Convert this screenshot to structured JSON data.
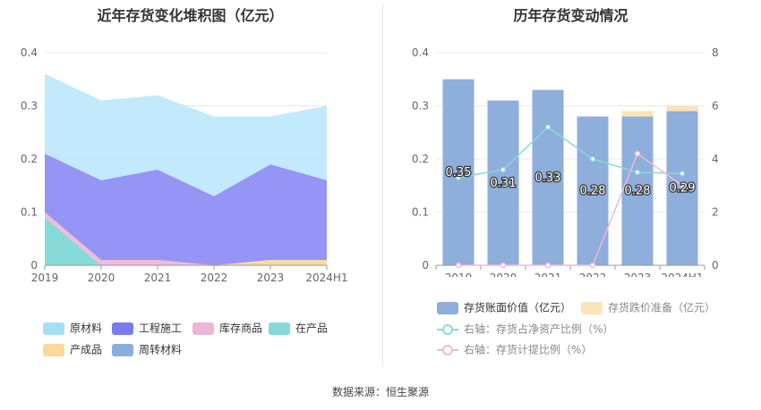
{
  "left": {
    "title": "近年存货变化堆积图（亿元）"
  },
  "right": {
    "title": "历年存货变动情况"
  },
  "source": "数据来源：恒生聚源",
  "chart_data": [
    {
      "type": "area",
      "title": "近年存货变化堆积图（亿元）",
      "categories": [
        "2019",
        "2020",
        "2021",
        "2022",
        "2023",
        "2024H1"
      ],
      "ylim": [
        0,
        0.4
      ],
      "yticks": [
        "0",
        "0.1",
        "0.2",
        "0.3",
        "0.4"
      ],
      "stacked": true,
      "grid": true,
      "legend_position": "bottom",
      "series": [
        {
          "name": "在产品",
          "color": "#7fd8d8",
          "values": [
            0.09,
            0.0,
            0.0,
            0.0,
            0.0,
            0.0
          ]
        },
        {
          "name": "库存商品",
          "color": "#f0b8d8",
          "values": [
            0.01,
            0.01,
            0.01,
            0.0,
            0.0,
            0.0
          ]
        },
        {
          "name": "产成品",
          "color": "#fcd79a",
          "values": [
            0.0,
            0.0,
            0.0,
            0.0,
            0.01,
            0.01
          ]
        },
        {
          "name": "工程施工",
          "color": "#8f8ff5",
          "values": [
            0.11,
            0.15,
            0.17,
            0.13,
            0.18,
            0.15
          ]
        },
        {
          "name": "周转材料",
          "color": "#8aaedc",
          "values": [
            0.0,
            0.0,
            0.0,
            0.0,
            0.0,
            0.0
          ]
        },
        {
          "name": "原材料",
          "color": "#bfe8fc",
          "values": [
            0.15,
            0.15,
            0.14,
            0.15,
            0.09,
            0.14
          ]
        }
      ],
      "legend": [
        {
          "name": "原材料",
          "color": "#a8ddf8"
        },
        {
          "name": "工程施工",
          "color": "#7b7bf0"
        },
        {
          "name": "库存商品",
          "color": "#ebb5d8"
        },
        {
          "name": "在产品",
          "color": "#88d8d8"
        },
        {
          "name": "产成品",
          "color": "#fdd89a"
        },
        {
          "name": "周转材料",
          "color": "#8aaedc"
        }
      ]
    },
    {
      "type": "bar",
      "title": "历年存货变动情况",
      "categories": [
        "2019",
        "2020",
        "2021",
        "2022",
        "2023",
        "2024H1"
      ],
      "ylim": [
        0,
        0.4
      ],
      "yticks": [
        "0",
        "0.1",
        "0.2",
        "0.3",
        "0.4"
      ],
      "y2lim": [
        0,
        8
      ],
      "y2ticks": [
        "0",
        "2",
        "4",
        "6",
        "8"
      ],
      "stacked": true,
      "grid": true,
      "legend_position": "bottom",
      "series": [
        {
          "name": "存货账面价值（亿元）",
          "type": "bar",
          "color": "#8eaedc",
          "values": [
            0.35,
            0.31,
            0.33,
            0.28,
            0.28,
            0.29
          ],
          "labels": [
            "0.35",
            "0.31",
            "0.33",
            "0.28",
            "0.28",
            "0.29"
          ]
        },
        {
          "name": "存货跌价准备（亿元）",
          "type": "bar",
          "color": "#fde3b8",
          "values": [
            0.0,
            0.0,
            0.0,
            0.0,
            0.01,
            0.01
          ]
        },
        {
          "name": "右轴：存货占净资产比例（%）",
          "type": "line",
          "axis": "right",
          "color": "#8ad8d8",
          "values": [
            3.3,
            3.6,
            5.2,
            4.0,
            3.5,
            3.45
          ]
        },
        {
          "name": "右轴：存货计提比例（%）",
          "type": "line",
          "axis": "right",
          "color": "#f0b8d8",
          "values": [
            0,
            0,
            0,
            0,
            4.2,
            3.0
          ]
        }
      ]
    }
  ]
}
